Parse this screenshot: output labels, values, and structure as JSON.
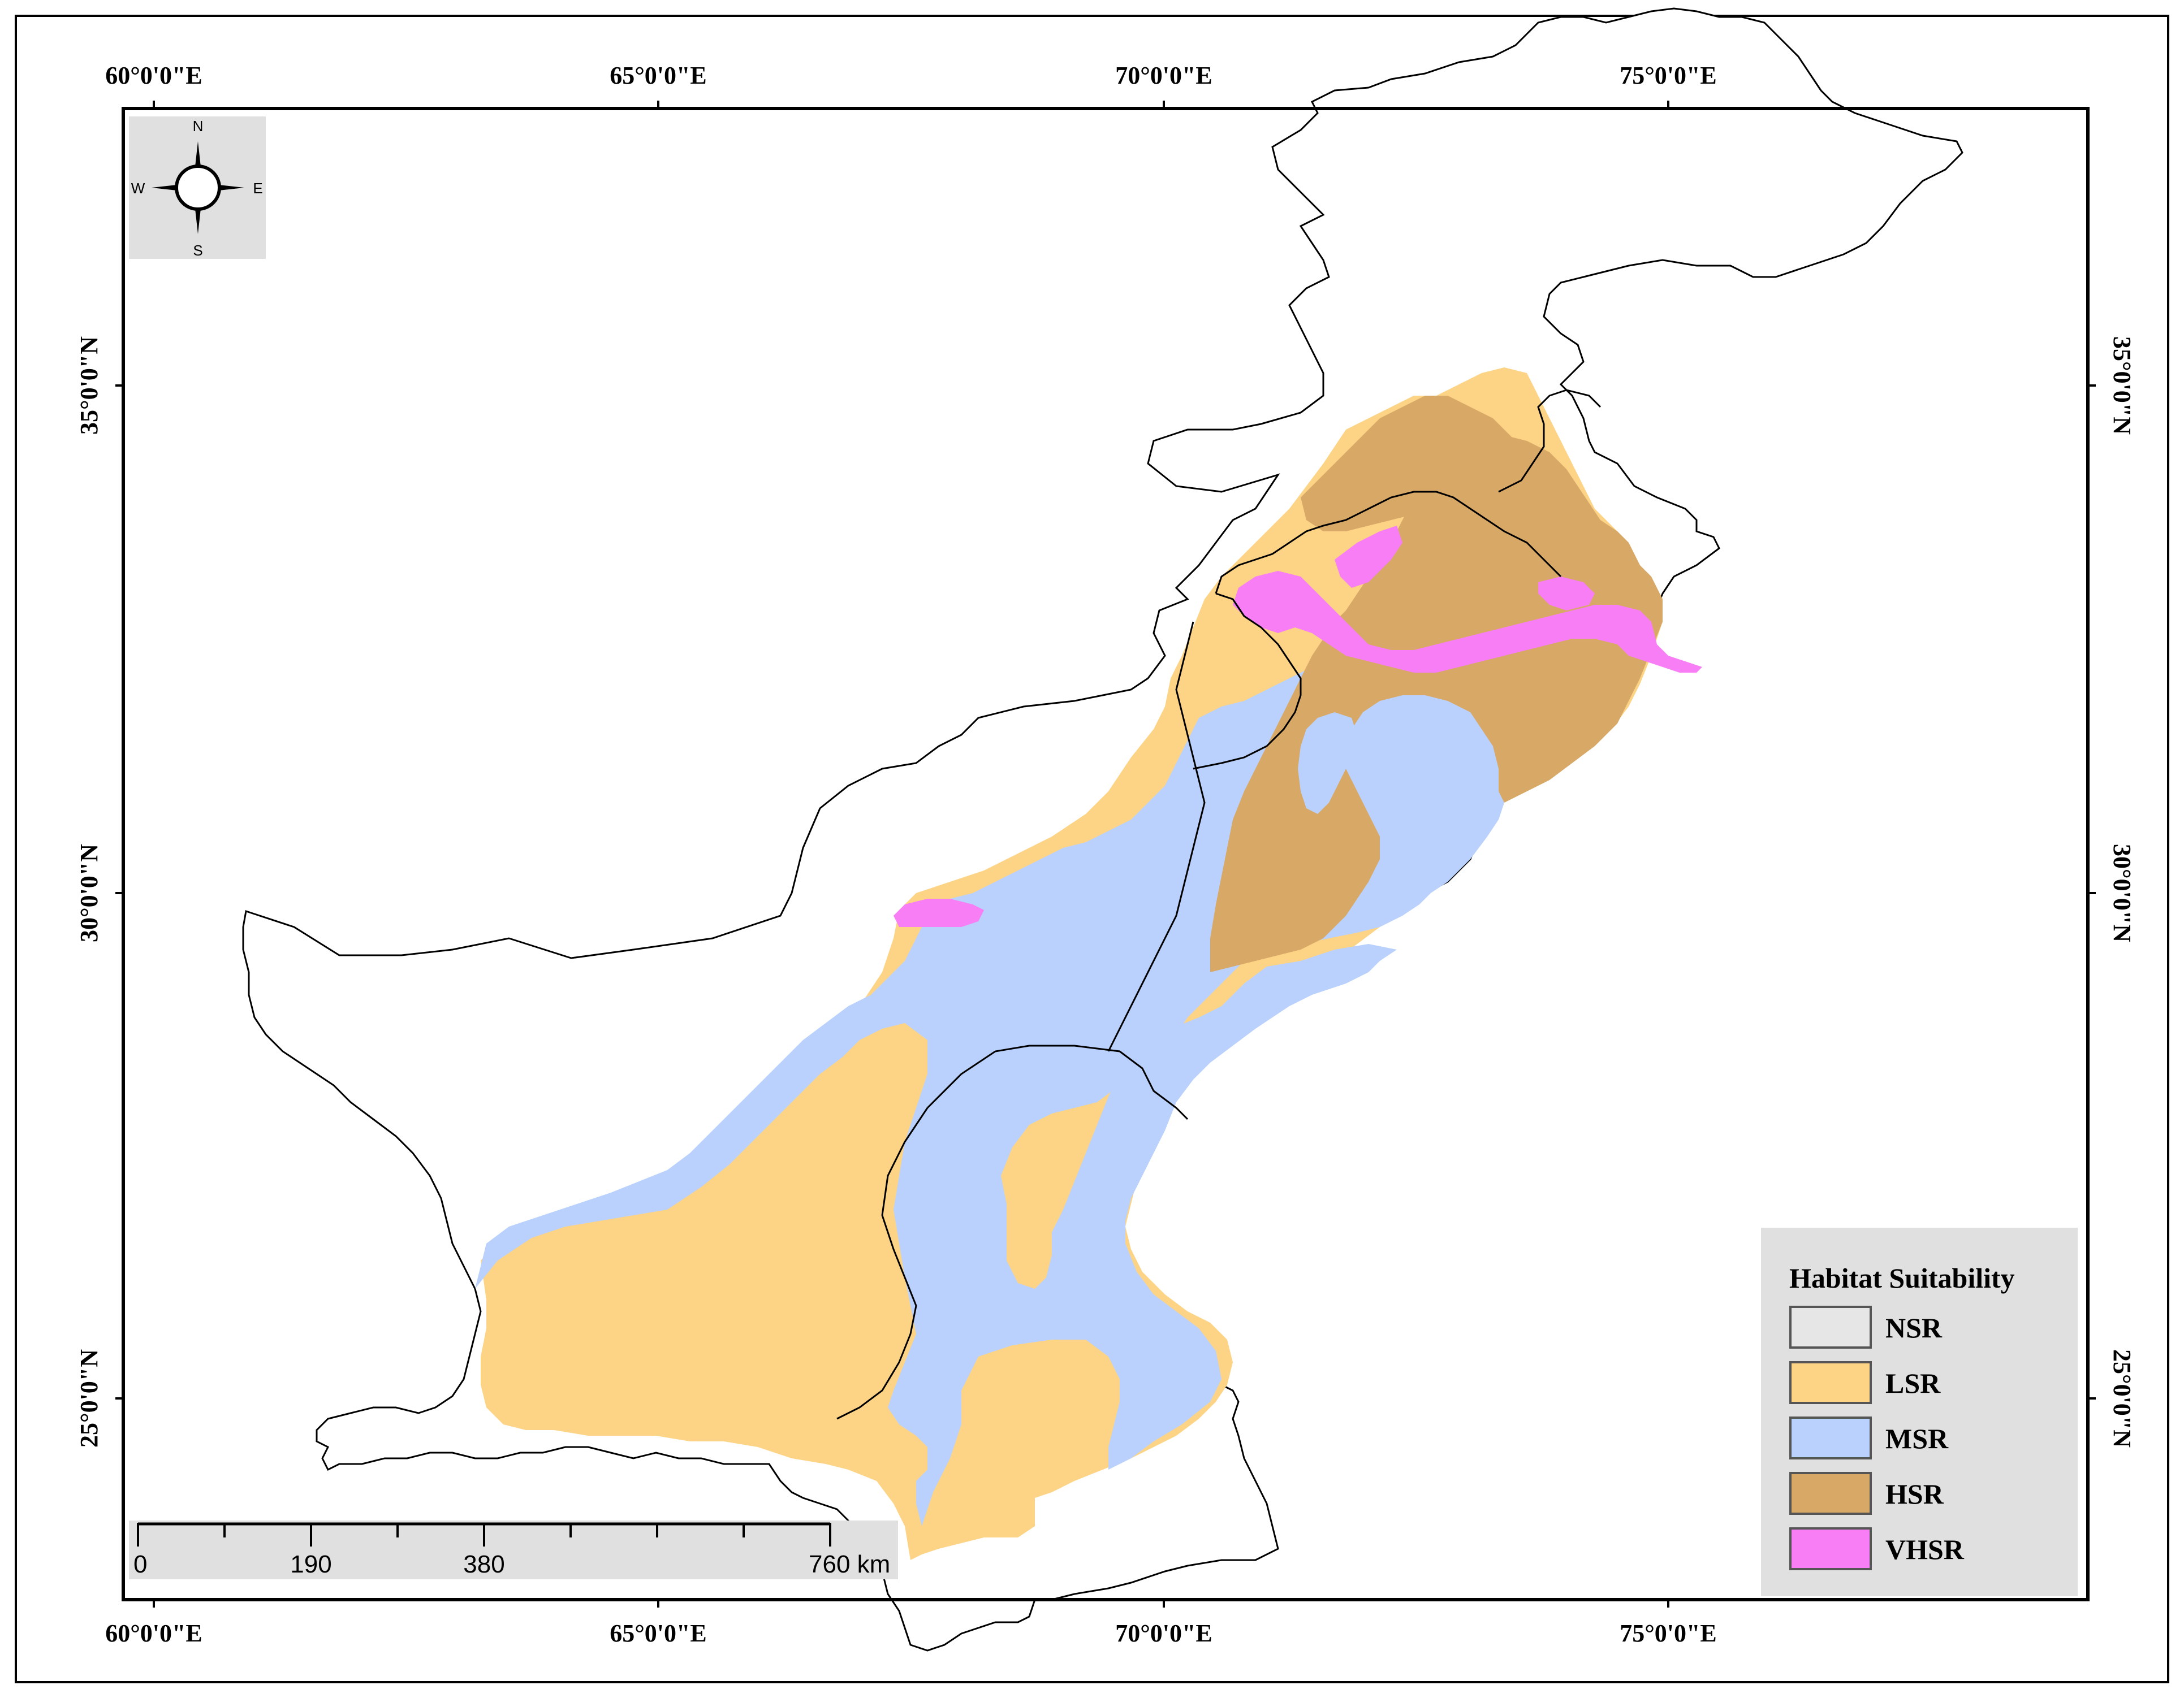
{
  "map": {
    "top_labels": [
      "60°0'0\"E",
      "65°0'0\"E",
      "70°0'0\"E",
      "75°0'0\"E"
    ],
    "bottom_labels": [
      "60°0'0\"E",
      "65°0'0\"E",
      "70°0'0\"E",
      "75°0'0\"E"
    ],
    "left_labels": [
      "35°0'0\"N",
      "30°0'0\"N",
      "25°0'0\"N"
    ],
    "right_labels": [
      "35°0'0\"N",
      "30°0'0\"N",
      "25°0'0\"N"
    ]
  },
  "compass": {
    "n": "N",
    "s": "S",
    "e": "E",
    "w": "W"
  },
  "scale_bar": {
    "labels": [
      "0",
      "190",
      "380",
      "760 km"
    ]
  },
  "legend": {
    "title": "Habitat Suitability",
    "items": [
      {
        "label": "NSR",
        "color": "#e6e6e6"
      },
      {
        "label": "LSR",
        "color": "#fdd485"
      },
      {
        "label": "MSR",
        "color": "#b9d1fc"
      },
      {
        "label": "HSR",
        "color": "#d8a866"
      },
      {
        "label": "VHSR",
        "color": "#f77ef5"
      }
    ]
  }
}
